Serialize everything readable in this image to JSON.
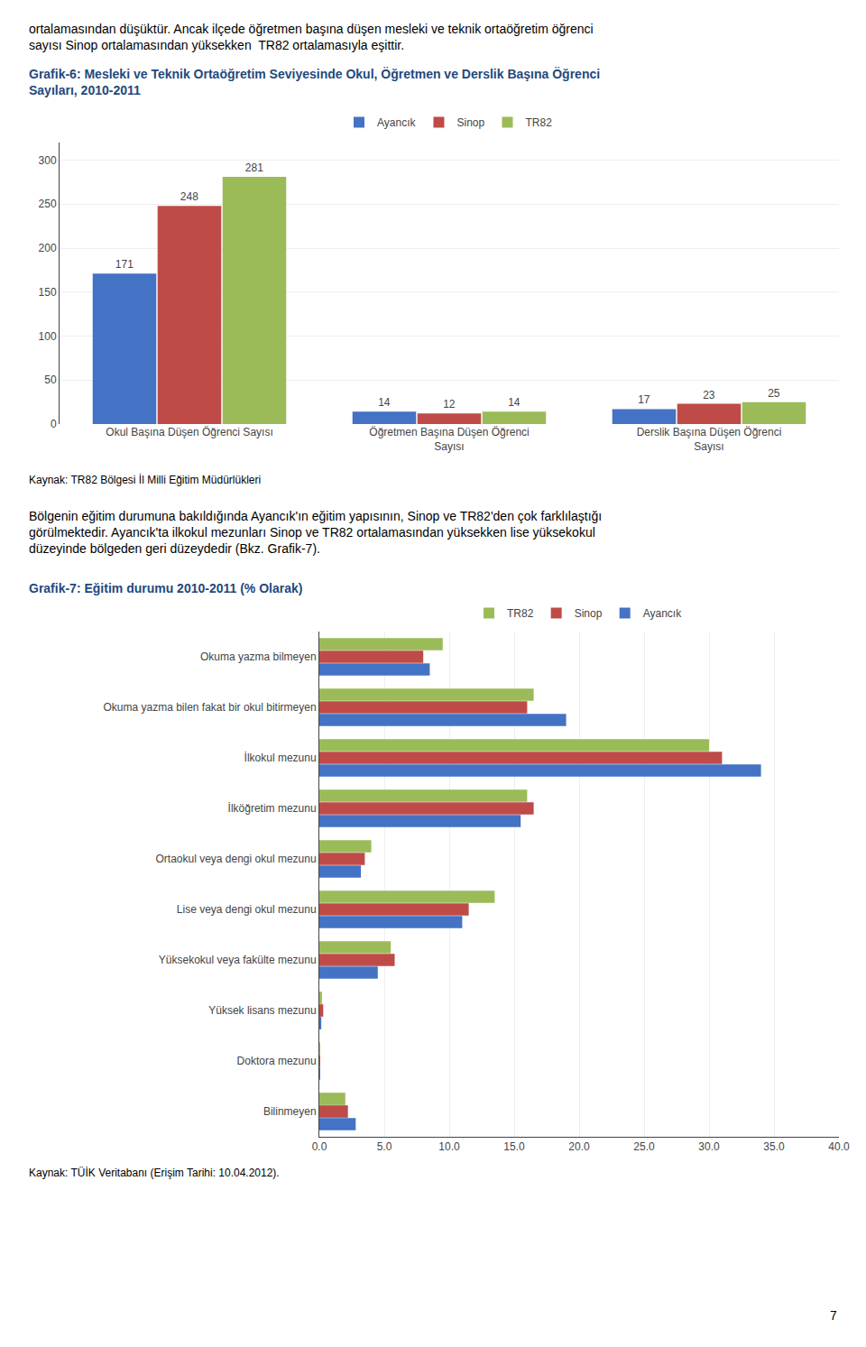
{
  "chart_data": [
    {
      "type": "bar",
      "title": "Grafik-6: Mesleki ve Teknik Ortaöğretim Seviyesinde Okul, Öğretmen ve Derslik Başına Öğrenci\nSayıları, 2010-2011",
      "annotations": [
        "ortalamasından düşüktür. Ancak ilçede öğretmen başına düşen mesleki ve teknik ortaöğretim öğrenci\nsayısı Sinop ortalamasından yüksekken  TR82 ortalamasıyla eşittir.",
        "Kaynak: TR82 Bölgesi İl Milli Eğitim Müdürlükleri"
      ],
      "categories": [
        "Okul Başına Düşen Öğrenci Sayısı",
        "Öğretmen Başına Düşen Öğrenci\nSayısı",
        "Derslik Başına Düşen Öğrenci\nSayısı"
      ],
      "series": [
        {
          "name": "Ayancık",
          "color": "#4472C4",
          "values": [
            171,
            14,
            17
          ]
        },
        {
          "name": "Sinop",
          "color": "#BE4B48",
          "values": [
            248,
            12,
            23
          ]
        },
        {
          "name": "TR82",
          "color": "#9BBB59",
          "values": [
            281,
            14,
            25
          ]
        }
      ],
      "ylim": [
        0,
        320
      ],
      "yticks": [
        0,
        50,
        100,
        150,
        200,
        250,
        300
      ],
      "grid": true,
      "legend": "top",
      "data_labels": true
    },
    {
      "type": "bar",
      "orientation": "horizontal",
      "title": "Grafik-7: Eğitim durumu 2010-2011 (% Olarak)",
      "annotations": [
        "Bölgenin eğitim durumuna bakıldığında Ayancık'ın eğitim yapısının, Sinop ve TR82'den çok farklılaştığı\ngörülmektedir. Ayancık'ta ilkokul mezunları Sinop ve TR82 ortalamasından yüksekken lise yüksekokul\ndüzeyinde bölgeden geri düzeydedir (Bkz. Grafik-7).",
        "Kaynak: TÜİK Veritabanı (Erişim Tarihi: 10.04.2012).",
        "7"
      ],
      "categories": [
        "Okuma yazma bilmeyen",
        "Okuma yazma bilen fakat bir okul bitirmeyen",
        "İlkokul mezunu",
        "İlköğretim mezunu",
        "Ortaokul veya dengi okul mezunu",
        "Lise veya dengi okul mezunu",
        "Yüksekokul veya fakülte mezunu",
        "Yüksek lisans mezunu",
        "Doktora mezunu",
        "Bilinmeyen"
      ],
      "series": [
        {
          "name": "TR82",
          "color": "#9BBB59",
          "values": [
            9.5,
            16.5,
            30.0,
            16.0,
            4.0,
            13.5,
            5.5,
            0.2,
            0.05,
            2.0
          ]
        },
        {
          "name": "Sinop",
          "color": "#BE4B48",
          "values": [
            8.0,
            16.0,
            31.0,
            16.5,
            3.5,
            11.5,
            5.8,
            0.3,
            0.05,
            2.2
          ]
        },
        {
          "name": "Ayancık",
          "color": "#4472C4",
          "values": [
            8.5,
            19.0,
            34.0,
            15.5,
            3.2,
            11.0,
            4.5,
            0.15,
            0.05,
            2.8
          ]
        }
      ],
      "xlim": [
        0,
        40
      ],
      "xticks": [
        {
          "value": 0.0,
          "label": "0.0"
        },
        {
          "value": 5.0,
          "label": "5.0"
        },
        {
          "value": 10.0,
          "label": "10.0"
        },
        {
          "value": 15.0,
          "label": "15.0"
        },
        {
          "value": 20.0,
          "label": "20.0"
        },
        {
          "value": 25.0,
          "label": "25.0"
        },
        {
          "value": 30.0,
          "label": "30.0"
        },
        {
          "value": 35.0,
          "label": "35.0"
        },
        {
          "value": 40.0,
          "label": "40.0"
        }
      ],
      "grid": true,
      "legend": "top"
    }
  ]
}
